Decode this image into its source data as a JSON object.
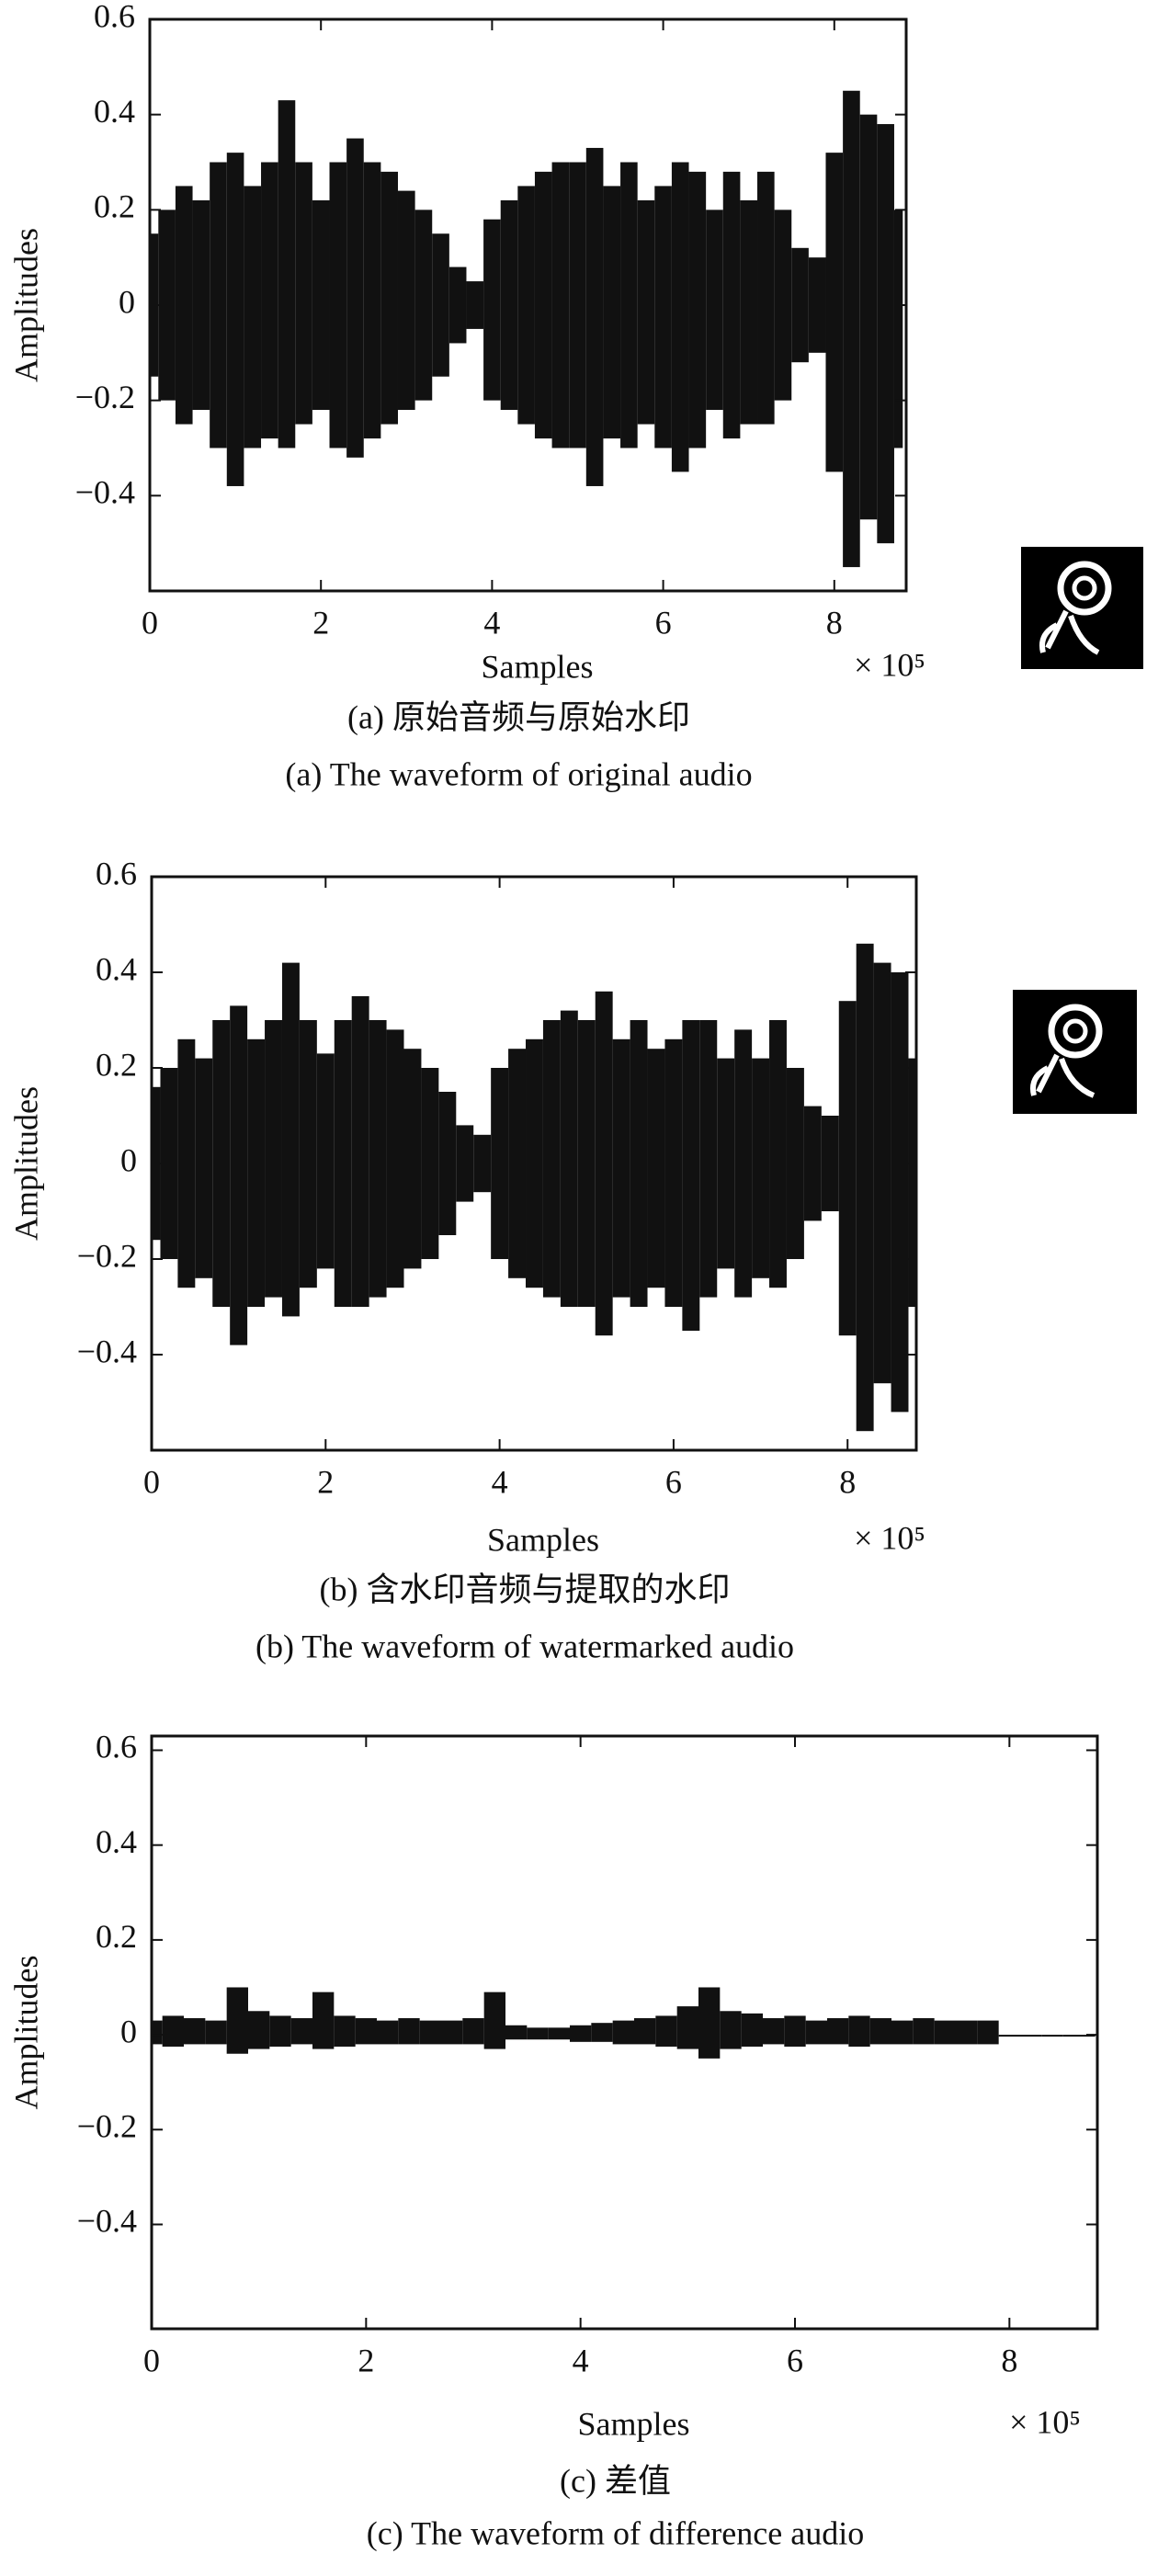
{
  "chart_data": [
    {
      "type": "area",
      "ylabel": "Amplitudes",
      "xlabel": "Samples",
      "x_multiplier": "× 10⁵",
      "captions": [
        "(a) 原始音频与原始水印",
        "(a) The waveform of original audio"
      ],
      "xlim": [
        0,
        8.84
      ],
      "ylim": [
        -0.6,
        0.6
      ],
      "xticks": [
        0,
        2,
        4,
        6,
        8
      ],
      "yticks": [
        {
          "value": -0.4,
          "label": "−0.4"
        },
        {
          "value": -0.2,
          "label": "−0.2"
        },
        0,
        0.2,
        0.4,
        0.6
      ],
      "x": [
        0,
        0.2,
        0.4,
        0.6,
        0.8,
        1.0,
        1.2,
        1.4,
        1.6,
        1.8,
        2.0,
        2.2,
        2.4,
        2.6,
        2.8,
        3.0,
        3.2,
        3.4,
        3.6,
        3.8,
        4.0,
        4.2,
        4.4,
        4.6,
        4.8,
        5.0,
        5.2,
        5.4,
        5.6,
        5.8,
        6.0,
        6.2,
        6.4,
        6.6,
        6.8,
        7.0,
        7.2,
        7.4,
        7.6,
        7.8,
        8.0,
        8.2,
        8.4,
        8.6,
        8.8
      ],
      "series": [
        {
          "color": "#111111",
          "values": [
            0.15,
            0.2,
            0.25,
            0.22,
            0.3,
            0.32,
            0.25,
            0.3,
            0.43,
            0.3,
            0.22,
            0.3,
            0.35,
            0.3,
            0.28,
            0.24,
            0.2,
            0.15,
            0.08,
            0.05,
            0.18,
            0.22,
            0.25,
            0.28,
            0.3,
            0.3,
            0.33,
            0.25,
            0.3,
            0.22,
            0.25,
            0.3,
            0.28,
            0.2,
            0.28,
            0.22,
            0.28,
            0.2,
            0.12,
            0.1,
            0.32,
            0.45,
            0.4,
            0.38,
            0.2
          ]
        },
        {
          "color": "#111111",
          "values": [
            -0.15,
            -0.2,
            -0.25,
            -0.22,
            -0.3,
            -0.38,
            -0.3,
            -0.28,
            -0.3,
            -0.25,
            -0.22,
            -0.3,
            -0.32,
            -0.28,
            -0.25,
            -0.22,
            -0.2,
            -0.15,
            -0.08,
            -0.05,
            -0.2,
            -0.22,
            -0.25,
            -0.28,
            -0.3,
            -0.3,
            -0.38,
            -0.28,
            -0.3,
            -0.25,
            -0.3,
            -0.35,
            -0.3,
            -0.22,
            -0.28,
            -0.25,
            -0.25,
            -0.2,
            -0.12,
            -0.1,
            -0.35,
            -0.55,
            -0.45,
            -0.5,
            -0.3
          ]
        }
      ]
    },
    {
      "type": "area",
      "ylabel": "Amplitudes",
      "xlabel": "Samples",
      "x_multiplier": "× 10⁵",
      "captions": [
        "(b) 含水印音频与提取的水印",
        "(b) The waveform of watermarked audio"
      ],
      "xlim": [
        0,
        8.79
      ],
      "ylim": [
        -0.6,
        0.6
      ],
      "xticks": [
        0,
        2,
        4,
        6,
        8
      ],
      "yticks": [
        {
          "value": -0.4,
          "label": "−0.4"
        },
        {
          "value": -0.2,
          "label": "−0.2"
        },
        0,
        0.2,
        0.4,
        0.6
      ],
      "x": [
        0,
        0.2,
        0.4,
        0.6,
        0.8,
        1.0,
        1.2,
        1.4,
        1.6,
        1.8,
        2.0,
        2.2,
        2.4,
        2.6,
        2.8,
        3.0,
        3.2,
        3.4,
        3.6,
        3.8,
        4.0,
        4.2,
        4.4,
        4.6,
        4.8,
        5.0,
        5.2,
        5.4,
        5.6,
        5.8,
        6.0,
        6.2,
        6.4,
        6.6,
        6.8,
        7.0,
        7.2,
        7.4,
        7.6,
        7.8,
        8.0,
        8.2,
        8.4,
        8.6,
        8.8
      ],
      "series": [
        {
          "color": "#111111",
          "values": [
            0.16,
            0.2,
            0.26,
            0.22,
            0.3,
            0.33,
            0.26,
            0.3,
            0.42,
            0.3,
            0.23,
            0.3,
            0.35,
            0.3,
            0.28,
            0.24,
            0.2,
            0.15,
            0.08,
            0.06,
            0.2,
            0.24,
            0.26,
            0.3,
            0.32,
            0.3,
            0.36,
            0.26,
            0.3,
            0.24,
            0.26,
            0.3,
            0.3,
            0.22,
            0.28,
            0.22,
            0.3,
            0.2,
            0.12,
            0.1,
            0.34,
            0.46,
            0.42,
            0.4,
            0.22
          ]
        },
        {
          "color": "#111111",
          "values": [
            -0.16,
            -0.2,
            -0.26,
            -0.24,
            -0.3,
            -0.38,
            -0.3,
            -0.28,
            -0.32,
            -0.26,
            -0.22,
            -0.3,
            -0.3,
            -0.28,
            -0.26,
            -0.22,
            -0.2,
            -0.15,
            -0.08,
            -0.06,
            -0.2,
            -0.24,
            -0.26,
            -0.28,
            -0.3,
            -0.3,
            -0.36,
            -0.28,
            -0.3,
            -0.26,
            -0.3,
            -0.35,
            -0.28,
            -0.22,
            -0.28,
            -0.24,
            -0.26,
            -0.2,
            -0.12,
            -0.1,
            -0.36,
            -0.56,
            -0.46,
            -0.52,
            -0.3
          ]
        }
      ]
    },
    {
      "type": "area",
      "ylabel": "Amplitudes",
      "xlabel": "Samples",
      "x_multiplier": "× 10⁵",
      "captions": [
        "(c) 差值",
        "(c) The waveform of difference audio"
      ],
      "xlim": [
        0,
        8.82
      ],
      "ylim": [
        -0.62,
        0.63
      ],
      "xticks": [
        0,
        2,
        4,
        6,
        8
      ],
      "yticks": [
        {
          "value": -0.4,
          "label": "−0.4"
        },
        {
          "value": -0.2,
          "label": "−0.2"
        },
        0,
        0.2,
        0.4,
        0.6
      ],
      "x": [
        0,
        0.2,
        0.4,
        0.6,
        0.8,
        1.0,
        1.2,
        1.4,
        1.6,
        1.8,
        2.0,
        2.2,
        2.4,
        2.6,
        2.8,
        3.0,
        3.2,
        3.4,
        3.6,
        3.8,
        4.0,
        4.2,
        4.4,
        4.6,
        4.8,
        5.0,
        5.2,
        5.4,
        5.6,
        5.8,
        6.0,
        6.2,
        6.4,
        6.6,
        6.8,
        7.0,
        7.2,
        7.4,
        7.6,
        7.8,
        8.0,
        8.2,
        8.4,
        8.6,
        8.8
      ],
      "series": [
        {
          "color": "#111111",
          "values": [
            0.03,
            0.04,
            0.035,
            0.03,
            0.1,
            0.05,
            0.04,
            0.035,
            0.09,
            0.04,
            0.035,
            0.03,
            0.035,
            0.03,
            0.03,
            0.035,
            0.09,
            0.02,
            0.015,
            0.015,
            0.02,
            0.025,
            0.03,
            0.035,
            0.04,
            0.06,
            0.1,
            0.05,
            0.045,
            0.035,
            0.04,
            0.03,
            0.035,
            0.04,
            0.035,
            0.03,
            0.035,
            0.03,
            0.03,
            0.03,
            0,
            0,
            0,
            0,
            0
          ]
        },
        {
          "color": "#111111",
          "values": [
            -0.02,
            -0.025,
            -0.02,
            -0.02,
            -0.04,
            -0.03,
            -0.025,
            -0.02,
            -0.03,
            -0.025,
            -0.02,
            -0.02,
            -0.02,
            -0.02,
            -0.02,
            -0.02,
            -0.03,
            -0.01,
            -0.01,
            -0.01,
            -0.015,
            -0.015,
            -0.02,
            -0.02,
            -0.025,
            -0.03,
            -0.05,
            -0.03,
            -0.025,
            -0.02,
            -0.025,
            -0.02,
            -0.02,
            -0.025,
            -0.02,
            -0.02,
            -0.02,
            -0.02,
            -0.02,
            -0.02,
            0,
            0,
            0,
            0,
            0
          ]
        }
      ]
    }
  ]
}
